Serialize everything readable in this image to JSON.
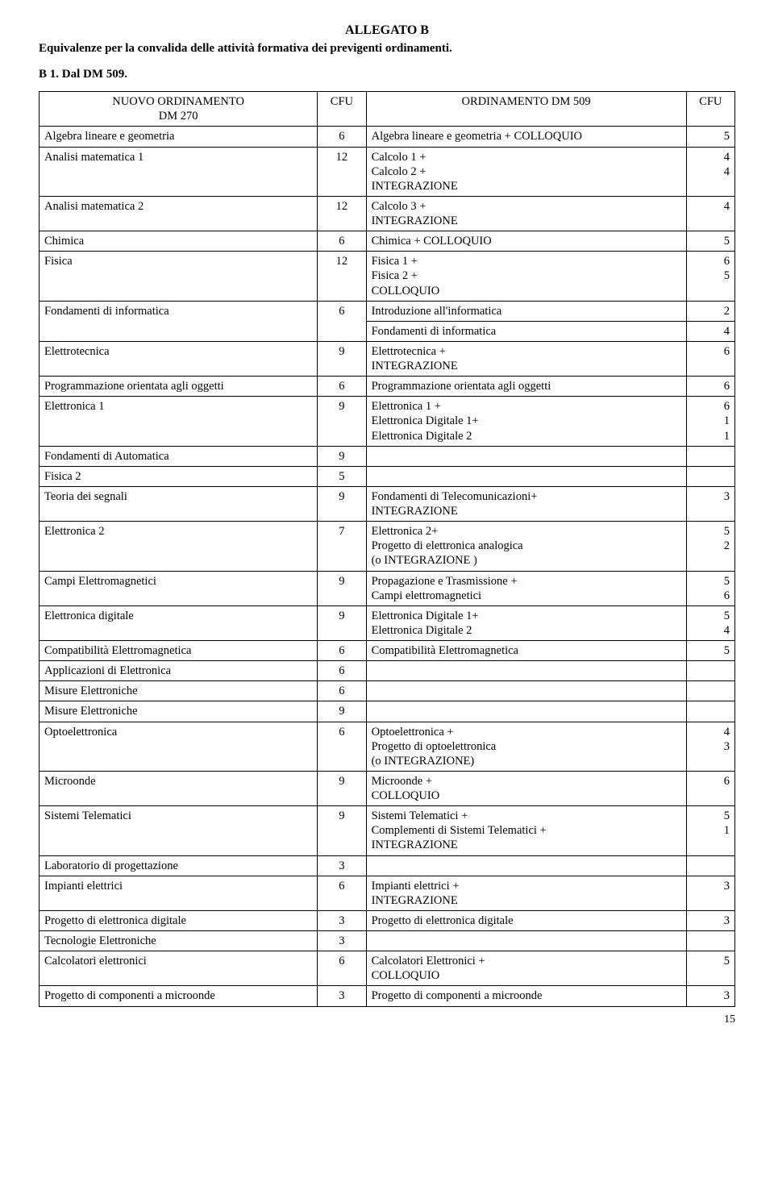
{
  "title_a": "ALLEGATO B",
  "subtitle": "Equivalenze per la convalida delle attività formativa dei previgenti ordinamenti.",
  "section_b": "B 1. Dal DM 509.",
  "page_number": "15",
  "headers": {
    "h1": "NUOVO ORDINAMENTO\nDM 270",
    "h2": "CFU",
    "h3": "ORDINAMENTO DM 509",
    "h4": "CFU"
  },
  "rows": [
    {
      "c1": "Algebra lineare e geometria",
      "c2": "6",
      "c3": "Algebra lineare e geometria + COLLOQUIO",
      "c4": "5"
    },
    {
      "c1": "Analisi matematica 1",
      "c2": "12",
      "c3": "Calcolo 1 +\nCalcolo 2 +\nINTEGRAZIONE",
      "c4": "4\n4"
    },
    {
      "c1": "Analisi matematica 2",
      "c2": "12",
      "c3": "Calcolo 3 +\nINTEGRAZIONE",
      "c4": "4"
    },
    {
      "c1": "Chimica",
      "c2": "6",
      "c3": "Chimica + COLLOQUIO",
      "c4": "5"
    },
    {
      "c1": "Fisica",
      "c2": "12",
      "c3": "Fisica 1 +\nFisica 2 +\nCOLLOQUIO",
      "c4": "6\n5"
    },
    {
      "c1": "Fondamenti di informatica",
      "c2": "6",
      "c3": "Introduzione all'informatica",
      "c4": "2",
      "c3b": "Fondamenti di informatica",
      "c4b": "4"
    },
    {
      "c1": "Elettrotecnica",
      "c2": "9",
      "c3": "Elettrotecnica +\nINTEGRAZIONE",
      "c4": "6"
    },
    {
      "c1": "Programmazione orientata agli oggetti",
      "c2": "6",
      "c3": "Programmazione orientata agli oggetti",
      "c4": "6"
    },
    {
      "c1": "Elettronica 1",
      "c2": "9",
      "c3": "Elettronica 1 +\nElettronica Digitale 1+\nElettronica Digitale 2",
      "c4": "6\n1\n1"
    },
    {
      "c1": "Fondamenti di Automatica",
      "c2": "9",
      "c3": "",
      "c4": ""
    },
    {
      "c1": "Fisica 2",
      "c2": "5",
      "c3": "",
      "c4": ""
    },
    {
      "c1": "Teoria dei segnali",
      "c2": "9",
      "c3": "Fondamenti di Telecomunicazioni+\nINTEGRAZIONE",
      "c4": "3"
    },
    {
      "c1": "Elettronica 2",
      "c2": "7",
      "c3": "Elettronica 2+\nProgetto di elettronica analogica\n(o INTEGRAZIONE )",
      "c4": "5\n2"
    },
    {
      "c1": "Campi Elettromagnetici",
      "c2": "9",
      "c3": "Propagazione e Trasmissione +\nCampi elettromagnetici",
      "c4": "5\n6"
    },
    {
      "c1": "Elettronica digitale",
      "c2": "9",
      "c3": "Elettronica Digitale 1+\nElettronica Digitale 2",
      "c4": "5\n4"
    },
    {
      "c1": "Compatibilità Elettromagnetica",
      "c2": "6",
      "c3": "Compatibilità Elettromagnetica",
      "c4": "5"
    },
    {
      "c1": "Applicazioni di Elettronica",
      "c2": "6",
      "c3": "",
      "c4": ""
    },
    {
      "c1": "Misure Elettroniche",
      "c2": "6",
      "c3": "",
      "c4": ""
    },
    {
      "c1": "Misure Elettroniche",
      "c2": "9",
      "c3": "",
      "c4": ""
    },
    {
      "c1": "Optoelettronica",
      "c2": "6",
      "c3": "Optoelettronica +\nProgetto di optoelettronica\n(o INTEGRAZIONE)",
      "c4": "4\n3"
    },
    {
      "c1": "Microonde",
      "c2": "9",
      "c3": "Microonde +\nCOLLOQUIO",
      "c4": "6"
    },
    {
      "c1": "Sistemi Telematici",
      "c2": "9",
      "c3": "Sistemi Telematici +\nComplementi di Sistemi Telematici +\nINTEGRAZIONE",
      "c4": "5\n1"
    },
    {
      "c1": "Laboratorio di progettazione",
      "c2": "3",
      "c3": "",
      "c4": ""
    },
    {
      "c1": "Impianti elettrici",
      "c2": "6",
      "c3": "Impianti elettrici +\nINTEGRAZIONE",
      "c4": "3"
    },
    {
      "c1": "Progetto di elettronica digitale",
      "c2": "3",
      "c3": "Progetto di elettronica digitale",
      "c4": "3"
    },
    {
      "c1": "Tecnologie Elettroniche",
      "c2": "3",
      "c3": "",
      "c4": ""
    },
    {
      "c1": "Calcolatori elettronici",
      "c2": "6",
      "c3": "Calcolatori Elettronici +\nCOLLOQUIO",
      "c4": "5"
    },
    {
      "c1": "Progetto di componenti a microonde",
      "c2": "3",
      "c3": "Progetto di componenti a microonde",
      "c4": "3"
    }
  ]
}
